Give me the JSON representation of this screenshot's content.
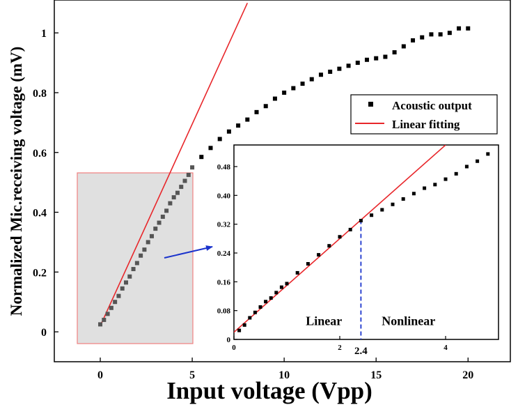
{
  "chart_data": [
    {
      "type": "scatter",
      "title": "",
      "xlabel": "Input voltage (Vpp)",
      "ylabel": "Normalized Mic.receiving voltage (mV)",
      "xlim": [
        -2.5,
        22.3
      ],
      "ylim": [
        -0.1,
        1.11
      ],
      "xticks": [
        0,
        5,
        10,
        15,
        20
      ],
      "yticks": [
        0,
        0.2,
        0.4,
        0.6,
        0.8,
        1
      ],
      "xtick_labels": [
        "0",
        "5",
        "10",
        "15",
        "20"
      ],
      "ytick_labels": [
        "0",
        "0.2",
        "0.4",
        "0.6",
        "0.8",
        "1"
      ],
      "legend": {
        "position": "upper-right",
        "entries": [
          {
            "label": "Acoustic output",
            "marker": "square",
            "color": "#000000"
          },
          {
            "label": "Linear fitting",
            "marker": "line",
            "color": "#e8262a"
          }
        ]
      },
      "series": [
        {
          "name": "Acoustic output",
          "x": [
            0,
            0.2,
            0.4,
            0.6,
            0.8,
            1.0,
            1.2,
            1.4,
            1.6,
            1.8,
            2.0,
            2.2,
            2.4,
            2.6,
            2.8,
            3.0,
            3.2,
            3.4,
            3.6,
            3.8,
            4.0,
            4.2,
            4.4,
            4.6,
            4.8,
            5.0,
            5.5,
            6.0,
            6.5,
            7.0,
            7.5,
            8.0,
            8.5,
            9.0,
            9.5,
            10.0,
            10.5,
            11.0,
            11.5,
            12.0,
            12.5,
            13.0,
            13.5,
            14.0,
            14.5,
            15.0,
            15.5,
            16.0,
            16.5,
            17.0,
            17.5,
            18.0,
            18.5,
            19.0,
            19.5,
            20.0
          ],
          "y": [
            0.025,
            0.04,
            0.06,
            0.08,
            0.1,
            0.12,
            0.145,
            0.165,
            0.185,
            0.21,
            0.23,
            0.255,
            0.275,
            0.3,
            0.32,
            0.345,
            0.365,
            0.385,
            0.405,
            0.43,
            0.45,
            0.465,
            0.485,
            0.505,
            0.525,
            0.55,
            0.585,
            0.615,
            0.645,
            0.67,
            0.69,
            0.71,
            0.735,
            0.755,
            0.78,
            0.8,
            0.815,
            0.83,
            0.845,
            0.86,
            0.87,
            0.88,
            0.89,
            0.9,
            0.91,
            0.915,
            0.92,
            0.935,
            0.955,
            0.975,
            0.985,
            0.995,
            0.995,
            1.0,
            1.015,
            1.015
          ]
        },
        {
          "name": "Linear fitting",
          "type": "line",
          "x": [
            0,
            8.0
          ],
          "y": [
            0.02,
            1.1
          ]
        }
      ]
    },
    {
      "type": "scatter",
      "title": "",
      "xlim": [
        0,
        5.0
      ],
      "ylim": [
        0,
        0.54
      ],
      "xticks": [
        0,
        2,
        4
      ],
      "yticks": [
        0,
        0.08,
        0.16,
        0.24,
        0.32,
        0.4,
        0.48
      ],
      "xtick_labels": [
        "0",
        "2",
        "4"
      ],
      "ytick_labels": [
        "0",
        "0.08",
        "0.16",
        "0.24",
        "0.32",
        "0.40",
        "0.48"
      ],
      "annotations": [
        {
          "text": "Linear",
          "x": 1.7,
          "y": 0.04
        },
        {
          "text": "Nonlinear",
          "x": 3.3,
          "y": 0.04
        },
        {
          "text": "2.4",
          "x": 2.4,
          "y": 0.332,
          "style": "dashed-vertical-marker",
          "color": "#1a33cc"
        }
      ],
      "series": [
        {
          "name": "Acoustic output",
          "x": [
            0.1,
            0.2,
            0.3,
            0.4,
            0.5,
            0.6,
            0.7,
            0.8,
            0.9,
            1.0,
            1.2,
            1.4,
            1.6,
            1.8,
            2.0,
            2.2,
            2.4,
            2.6,
            2.8,
            3.0,
            3.2,
            3.4,
            3.6,
            3.8,
            4.0,
            4.2,
            4.4,
            4.6,
            4.8
          ],
          "y": [
            0.025,
            0.04,
            0.06,
            0.075,
            0.09,
            0.105,
            0.115,
            0.13,
            0.145,
            0.155,
            0.185,
            0.21,
            0.235,
            0.26,
            0.285,
            0.305,
            0.33,
            0.345,
            0.36,
            0.375,
            0.39,
            0.405,
            0.42,
            0.43,
            0.445,
            0.46,
            0.48,
            0.495,
            0.515
          ]
        },
        {
          "name": "Linear fitting",
          "type": "line",
          "x": [
            0,
            4.0
          ],
          "y": [
            0.02,
            0.54
          ]
        }
      ]
    }
  ],
  "colors": {
    "fit_line": "#e8262a",
    "data_marker": "#000000",
    "arrow": "#1a33cc",
    "highlight_box_fill": "#e0e0e0",
    "highlight_box_border": "#f08080"
  }
}
